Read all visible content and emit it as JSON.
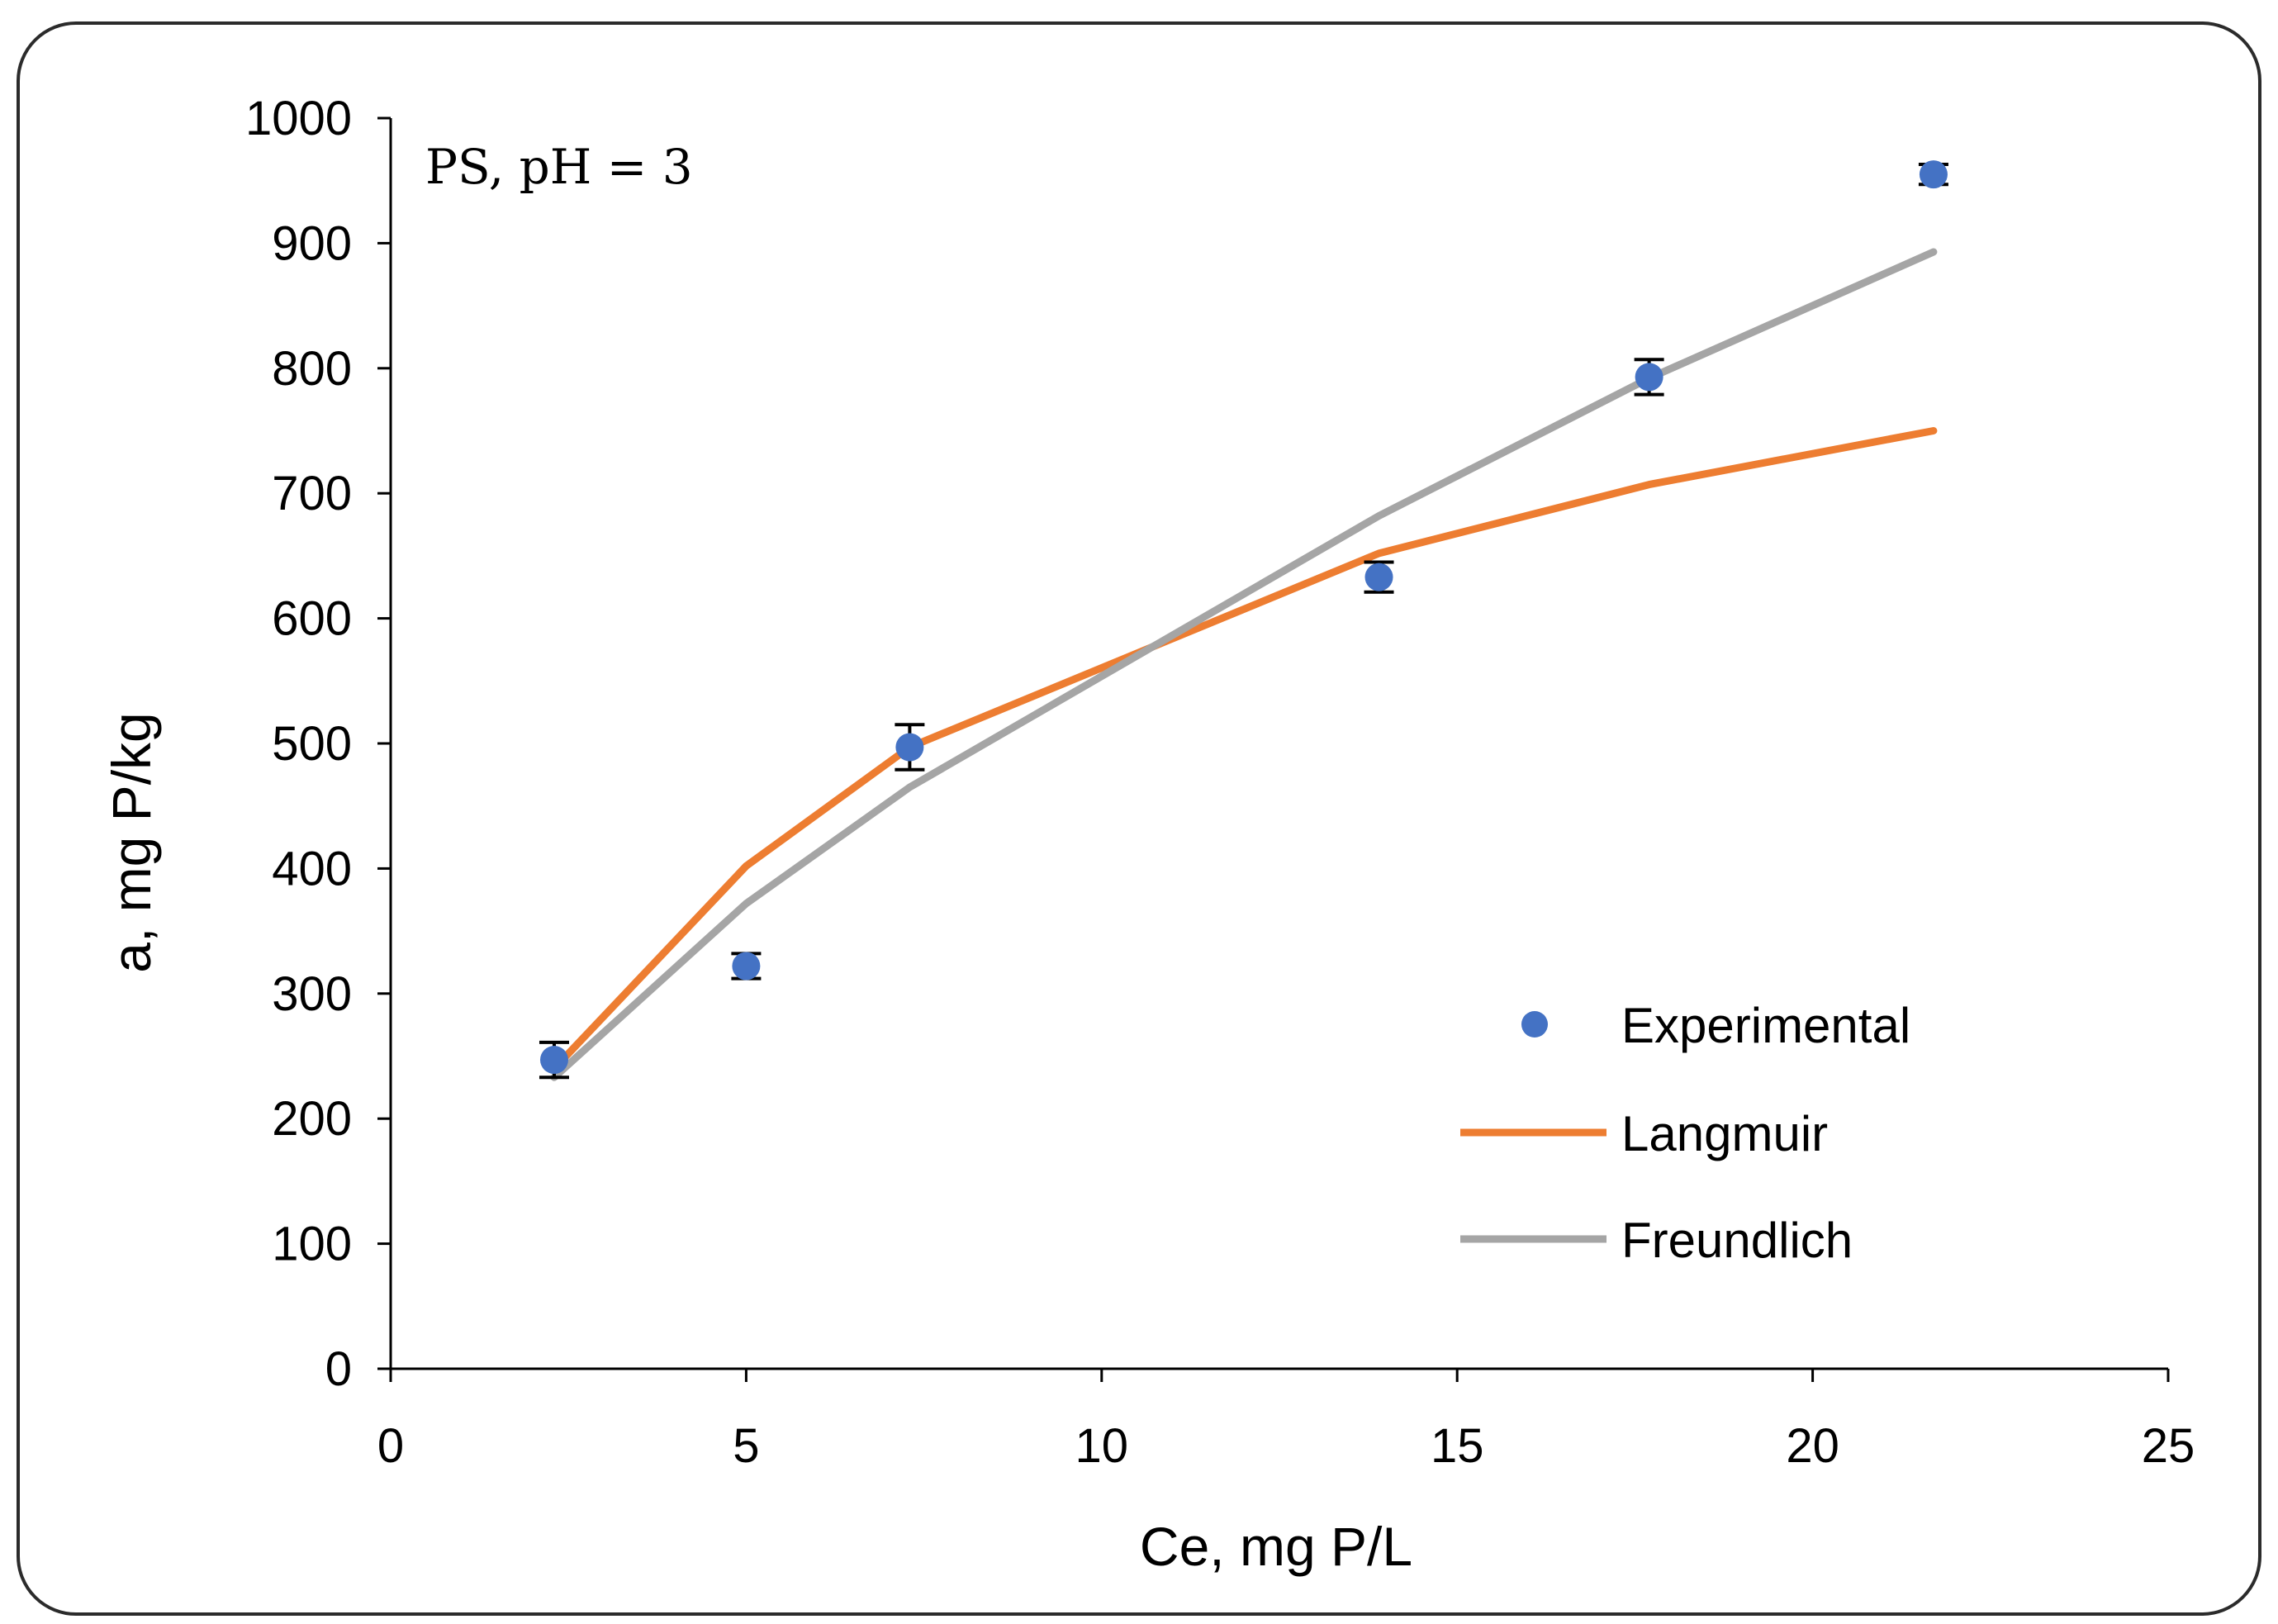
{
  "chart_data": {
    "type": "scatter",
    "annotation": "PS, pH = 3",
    "xlabel": "Ce, mg P/L",
    "ylabel": "a, mg P/kg",
    "xlim": [
      0,
      25
    ],
    "ylim": [
      0,
      1000
    ],
    "x_ticks": [
      "0",
      "5",
      "10",
      "15",
      "20",
      "25"
    ],
    "x_tick_values": [
      0,
      5,
      10,
      15,
      20,
      25
    ],
    "y_ticks": [
      "0",
      "100",
      "200",
      "300",
      "400",
      "500",
      "600",
      "700",
      "800",
      "900",
      "1000"
    ],
    "y_tick_values": [
      0,
      100,
      200,
      300,
      400,
      500,
      600,
      700,
      800,
      900,
      1000
    ],
    "grid": false,
    "legend_position": "bottom-right",
    "series": [
      {
        "name": "Experimental",
        "kind": "points",
        "color": "#4472C4",
        "x": [
          2.3,
          5.0,
          7.3,
          13.9,
          17.7,
          21.7
        ],
        "y": [
          247,
          322,
          497,
          633,
          793,
          955
        ],
        "error": [
          14,
          10,
          18,
          12,
          14,
          8
        ]
      },
      {
        "name": "Langmuir",
        "kind": "line",
        "color": "#ED7D31",
        "x": [
          2.3,
          5.0,
          7.3,
          13.9,
          17.7,
          21.7
        ],
        "y": [
          240,
          402,
          497,
          652,
          707,
          750
        ]
      },
      {
        "name": "Freundlich",
        "kind": "line",
        "color": "#A5A5A5",
        "x": [
          2.3,
          5.0,
          7.3,
          13.9,
          17.7,
          21.7
        ],
        "y": [
          233,
          372,
          465,
          682,
          792,
          893
        ]
      }
    ]
  }
}
